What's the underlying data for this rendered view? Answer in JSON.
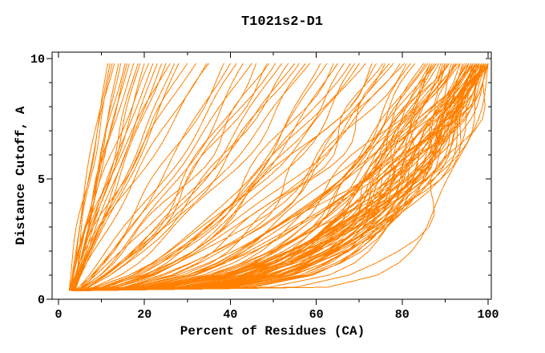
{
  "window": {
    "background": "#ffffff"
  },
  "chart_data": {
    "type": "line",
    "title": "T1021s2-D1",
    "xlabel": "Percent of Residues (CA)",
    "ylabel": "Distance Cutoff, A",
    "xlim": [
      0,
      100
    ],
    "ylim": [
      0,
      10
    ],
    "x_major_ticks": [
      0,
      20,
      40,
      60,
      80,
      100
    ],
    "x_tick_labels": [
      "0",
      "20",
      "40",
      "60",
      "80",
      "100"
    ],
    "x_minor_step": 10,
    "y_major_ticks": [
      0,
      5,
      10
    ],
    "y_tick_labels": [
      "0",
      "5",
      "10"
    ],
    "y_minor_step": 1,
    "grid": false,
    "legend": "none",
    "line_color": "#ff8000",
    "axis_color": "#000000",
    "cutoff_points": "y sampled at 0.35 then 0.5 to 9.5 step 0.5 then 9.8",
    "curve_param_format": [
      "start_percent",
      "end_percent_at_10A",
      "shape_exponent",
      "wobble_amp",
      "wobble_phase",
      "wobble_freq"
    ],
    "curves": [
      [
        4.2,
        100,
        0.22,
        0.03,
        0.5,
        0.9
      ],
      [
        3.6,
        99,
        0.3,
        0.04,
        2.1,
        1.1
      ],
      [
        4.8,
        98,
        0.26,
        0.02,
        3.3,
        0.8
      ],
      [
        3.1,
        100,
        0.35,
        0.05,
        4.2,
        1.2
      ],
      [
        5.0,
        97,
        0.2,
        0.03,
        1.7,
        1.0
      ],
      [
        4.4,
        99.5,
        0.28,
        0.04,
        5.1,
        0.7
      ],
      [
        3.8,
        96,
        0.33,
        0.02,
        0.9,
        1.3
      ],
      [
        4.1,
        100,
        0.24,
        0.05,
        2.8,
        0.9
      ],
      [
        4.6,
        98.5,
        0.31,
        0.03,
        3.9,
        1.1
      ],
      [
        3.3,
        97.5,
        0.27,
        0.04,
        5.6,
        0.8
      ],
      [
        4.9,
        99,
        0.21,
        0.02,
        1.2,
        1.2
      ],
      [
        3.5,
        96.5,
        0.36,
        0.05,
        4.7,
        1.0
      ],
      [
        4.3,
        100,
        0.25,
        0.03,
        0.3,
        0.85
      ],
      [
        3.9,
        98,
        0.32,
        0.04,
        2.5,
        1.15
      ],
      [
        4.7,
        95.5,
        0.23,
        0.02,
        3.6,
        0.95
      ],
      [
        3.2,
        99,
        0.29,
        0.05,
        5.9,
        1.05
      ],
      [
        4.5,
        97,
        0.34,
        0.03,
        1.5,
        0.75
      ],
      [
        3.7,
        100,
        0.15,
        0.04,
        4.4,
        1.25
      ],
      [
        4.0,
        98.5,
        0.37,
        0.02,
        0.7,
        0.9
      ],
      [
        4.8,
        96,
        0.26,
        0.05,
        2.2,
        1.1
      ],
      [
        3.4,
        99.5,
        0.3,
        0.03,
        3.1,
        0.8
      ],
      [
        4.2,
        95,
        0.24,
        0.04,
        5.3,
        1.2
      ],
      [
        3.8,
        100,
        0.33,
        0.02,
        1.9,
        1.0
      ],
      [
        4.6,
        97.5,
        0.21,
        0.05,
        4.0,
        0.7
      ],
      [
        3.0,
        98,
        0.35,
        0.03,
        0.1,
        1.3
      ],
      [
        4.4,
        96.5,
        0.28,
        0.04,
        2.7,
        0.9
      ],
      [
        3.6,
        99,
        0.23,
        0.02,
        3.8,
        1.1
      ],
      [
        4.1,
        95.5,
        0.38,
        0.05,
        5.7,
        0.8
      ],
      [
        4.9,
        100,
        0.27,
        0.03,
        1.1,
        1.2
      ],
      [
        3.3,
        97,
        0.31,
        0.04,
        4.6,
        1.0
      ],
      [
        4.7,
        98.5,
        0.22,
        0.02,
        0.6,
        0.85
      ],
      [
        3.5,
        96,
        0.36,
        0.05,
        2.4,
        1.15
      ],
      [
        4.3,
        99.5,
        0.25,
        0.03,
        3.5,
        0.95
      ],
      [
        3.9,
        94.5,
        0.29,
        0.04,
        5.8,
        1.05
      ],
      [
        4.5,
        100,
        0.12,
        0.02,
        1.4,
        0.75
      ],
      [
        3.1,
        98,
        0.34,
        0.05,
        4.3,
        1.25
      ],
      [
        4.0,
        96.5,
        0.26,
        0.03,
        0.2,
        0.9
      ],
      [
        4.8,
        99,
        0.32,
        0.04,
        2.0,
        1.1
      ],
      [
        3.7,
        95,
        0.24,
        0.02,
        3.2,
        0.8
      ],
      [
        4.2,
        97.5,
        0.3,
        0.05,
        5.2,
        1.2
      ],
      [
        4.0,
        99.5,
        0.23,
        0.04,
        1.45,
        1.0
      ],
      [
        4.6,
        98,
        0.29,
        0.03,
        2.95,
        0.9
      ],
      [
        3.4,
        100,
        0.32,
        0.05,
        4.55,
        1.1
      ],
      [
        4.2,
        96.5,
        0.27,
        0.02,
        0.35,
        1.2
      ],
      [
        3.8,
        99,
        0.18,
        0.04,
        1.95,
        0.85
      ],
      [
        4.5,
        97,
        0.35,
        0.03,
        3.45,
        1.05
      ],
      [
        3.6,
        98.5,
        0.25,
        0.05,
        5.05,
        0.95
      ],
      [
        4.1,
        100,
        0.31,
        0.02,
        0.75,
        1.15
      ],
      [
        4.7,
        95.5,
        0.28,
        0.04,
        2.35,
        0.9
      ],
      [
        3.2,
        97.5,
        0.24,
        0.03,
        3.95,
        1.1
      ],
      [
        4.4,
        93.5,
        0.3,
        0.04,
        1.6,
        1.0
      ],
      [
        3.8,
        91,
        0.42,
        0.03,
        3.4,
        0.9
      ],
      [
        4.6,
        89.5,
        0.27,
        0.05,
        5.0,
        1.1
      ],
      [
        3.2,
        92.5,
        0.38,
        0.02,
        0.8,
        1.2
      ],
      [
        4.9,
        88,
        0.33,
        0.04,
        2.6,
        0.8
      ],
      [
        3.6,
        94,
        0.25,
        0.03,
        4.1,
        1.05
      ],
      [
        4.1,
        90,
        0.45,
        0.05,
        5.5,
        0.95
      ],
      [
        4.7,
        86.5,
        0.29,
        0.02,
        1.0,
        1.15
      ],
      [
        3.4,
        93,
        0.4,
        0.04,
        3.0,
        0.85
      ],
      [
        4.3,
        87.5,
        0.35,
        0.03,
        4.8,
        1.25
      ],
      [
        3.9,
        91.5,
        0.28,
        0.05,
        0.4,
        0.9
      ],
      [
        4.5,
        85.5,
        0.43,
        0.02,
        2.3,
        1.1
      ],
      [
        3.3,
        92,
        0.31,
        0.04,
        3.7,
        1.0
      ],
      [
        4.8,
        88.5,
        0.37,
        0.03,
        5.4,
        0.8
      ],
      [
        3.7,
        90.5,
        0.26,
        0.05,
        1.3,
        1.2
      ],
      [
        4.2,
        86,
        0.41,
        0.02,
        2.9,
        0.95
      ],
      [
        3.5,
        93.5,
        0.34,
        0.04,
        4.5,
        1.05
      ],
      [
        4.6,
        89,
        0.3,
        0.03,
        0.05,
        0.85
      ],
      [
        3.0,
        91,
        0.44,
        0.05,
        1.8,
        1.15
      ],
      [
        4.4,
        87,
        0.32,
        0.02,
        3.3,
        1.0
      ],
      [
        3.8,
        92.5,
        0.39,
        0.04,
        4.9,
        0.9
      ],
      [
        4.0,
        85,
        0.36,
        0.03,
        0.9,
        1.1
      ],
      [
        4.7,
        90,
        0.28,
        0.05,
        2.5,
        1.2
      ],
      [
        3.2,
        88,
        0.46,
        0.02,
        4.2,
        0.8
      ],
      [
        4.5,
        86.5,
        0.33,
        0.04,
        5.6,
        1.0
      ],
      [
        4.3,
        83,
        0.4,
        0.04,
        1.2,
        1.0
      ],
      [
        3.7,
        78,
        0.52,
        0.03,
        2.8,
        0.9
      ],
      [
        4.8,
        73,
        0.45,
        0.05,
        4.4,
        1.1
      ],
      [
        3.1,
        80.5,
        0.58,
        0.02,
        0.5,
        1.2
      ],
      [
        4.4,
        69,
        0.48,
        0.04,
        2.1,
        0.85
      ],
      [
        3.9,
        76,
        0.42,
        0.03,
        3.6,
        1.05
      ],
      [
        4.6,
        64,
        0.55,
        0.05,
        5.2,
        0.95
      ],
      [
        3.3,
        71.5,
        0.62,
        0.02,
        1.5,
        1.15
      ],
      [
        4.1,
        82,
        0.38,
        0.04,
        3.1,
        0.8
      ],
      [
        4.9,
        66.5,
        0.5,
        0.03,
        4.7,
        1.25
      ],
      [
        3.5,
        74,
        0.57,
        0.05,
        0.2,
        0.9
      ],
      [
        4.2,
        61,
        0.47,
        0.02,
        1.9,
        1.1
      ],
      [
        3.8,
        79.5,
        0.53,
        0.04,
        3.9,
        1.0
      ],
      [
        4.7,
        68,
        0.6,
        0.03,
        5.5,
        0.8
      ],
      [
        3.2,
        75.5,
        0.44,
        0.05,
        1.0,
        1.2
      ],
      [
        4.5,
        62.5,
        0.56,
        0.02,
        2.7,
        0.95
      ],
      [
        3.6,
        81,
        0.49,
        0.04,
        4.3,
        1.05
      ],
      [
        4.0,
        70,
        0.63,
        0.03,
        5.9,
        0.85
      ],
      [
        3.4,
        77,
        0.41,
        0.05,
        0.7,
        1.15
      ],
      [
        4.8,
        65,
        0.54,
        0.02,
        2.4,
        1.0
      ],
      [
        3.9,
        57.5,
        0.62,
        0.04,
        1.4,
        1.0
      ],
      [
        4.4,
        52,
        0.72,
        0.03,
        3.2,
        0.9
      ],
      [
        3.3,
        48.5,
        0.66,
        0.05,
        4.8,
        1.1
      ],
      [
        4.7,
        55,
        0.78,
        0.02,
        0.6,
        1.2
      ],
      [
        3.6,
        43,
        0.7,
        0.04,
        2.2,
        0.85
      ],
      [
        4.1,
        50.5,
        0.84,
        0.03,
        3.8,
        1.05
      ],
      [
        3.0,
        46,
        0.64,
        0.05,
        5.4,
        0.95
      ],
      [
        4.5,
        58.5,
        0.75,
        0.02,
        1.1,
        1.15
      ],
      [
        3.8,
        41.5,
        0.88,
        0.04,
        2.9,
        0.8
      ],
      [
        4.2,
        53.5,
        0.68,
        0.03,
        4.5,
        1.25
      ],
      [
        3.4,
        38.5,
        0.8,
        0.05,
        0.3,
        0.9
      ],
      [
        4.8,
        45,
        0.92,
        0.02,
        1.8,
        1.1
      ],
      [
        3.7,
        56,
        0.73,
        0.04,
        3.5,
        1.0
      ],
      [
        4.3,
        40,
        0.86,
        0.03,
        5.1,
        0.8
      ],
      [
        3.5,
        49,
        0.77,
        0.05,
        0.9,
        1.2
      ],
      [
        2.9,
        11.5,
        1.05,
        0.03,
        1.3,
        1.0
      ],
      [
        3.4,
        14,
        0.95,
        0.04,
        2.9,
        0.9
      ],
      [
        2.6,
        17.5,
        1.15,
        0.02,
        4.5,
        1.1
      ],
      [
        3.8,
        12.5,
        1.25,
        0.05,
        0.4,
        1.2
      ],
      [
        3.1,
        20,
        0.9,
        0.03,
        2.0,
        0.85
      ],
      [
        2.8,
        15.5,
        1.1,
        0.04,
        3.7,
        1.05
      ],
      [
        3.6,
        24,
        1.0,
        0.02,
        5.3,
        0.95
      ],
      [
        2.5,
        13,
        1.3,
        0.05,
        1.6,
        1.15
      ],
      [
        3.3,
        28,
        0.93,
        0.03,
        3.0,
        0.8
      ],
      [
        3.9,
        16,
        1.18,
        0.04,
        4.6,
        1.25
      ],
      [
        2.7,
        22,
        1.08,
        0.02,
        0.1,
        0.9
      ],
      [
        3.5,
        18.5,
        0.97,
        0.05,
        1.7,
        1.1
      ],
      [
        3.0,
        32,
        1.22,
        0.03,
        3.4,
        1.0
      ],
      [
        3.7,
        14.5,
        1.02,
        0.04,
        5.0,
        0.8
      ],
      [
        2.6,
        26,
        1.35,
        0.02,
        1.2,
        1.2
      ],
      [
        3.2,
        19,
        0.91,
        0.05,
        2.6,
        0.95
      ],
      [
        3.8,
        34.5,
        1.12,
        0.03,
        4.2,
        1.05
      ],
      [
        2.9,
        12,
        1.28,
        0.04,
        5.8,
        0.85
      ],
      [
        3.4,
        23,
        0.99,
        0.02,
        0.8,
        1.15
      ],
      [
        3.1,
        30,
        1.2,
        0.05,
        2.3,
        1.0
      ],
      [
        2.8,
        16.5,
        1.06,
        0.03,
        3.9,
        0.9
      ],
      [
        3.6,
        21,
        1.32,
        0.04,
        5.5,
        1.1
      ],
      [
        2.5,
        27,
        0.94,
        0.02,
        1.05,
        1.2
      ],
      [
        3.3,
        35,
        1.14,
        0.05,
        2.75,
        0.8
      ],
      [
        3.9,
        25,
        1.03,
        0.03,
        4.35,
        1.0
      ]
    ]
  }
}
